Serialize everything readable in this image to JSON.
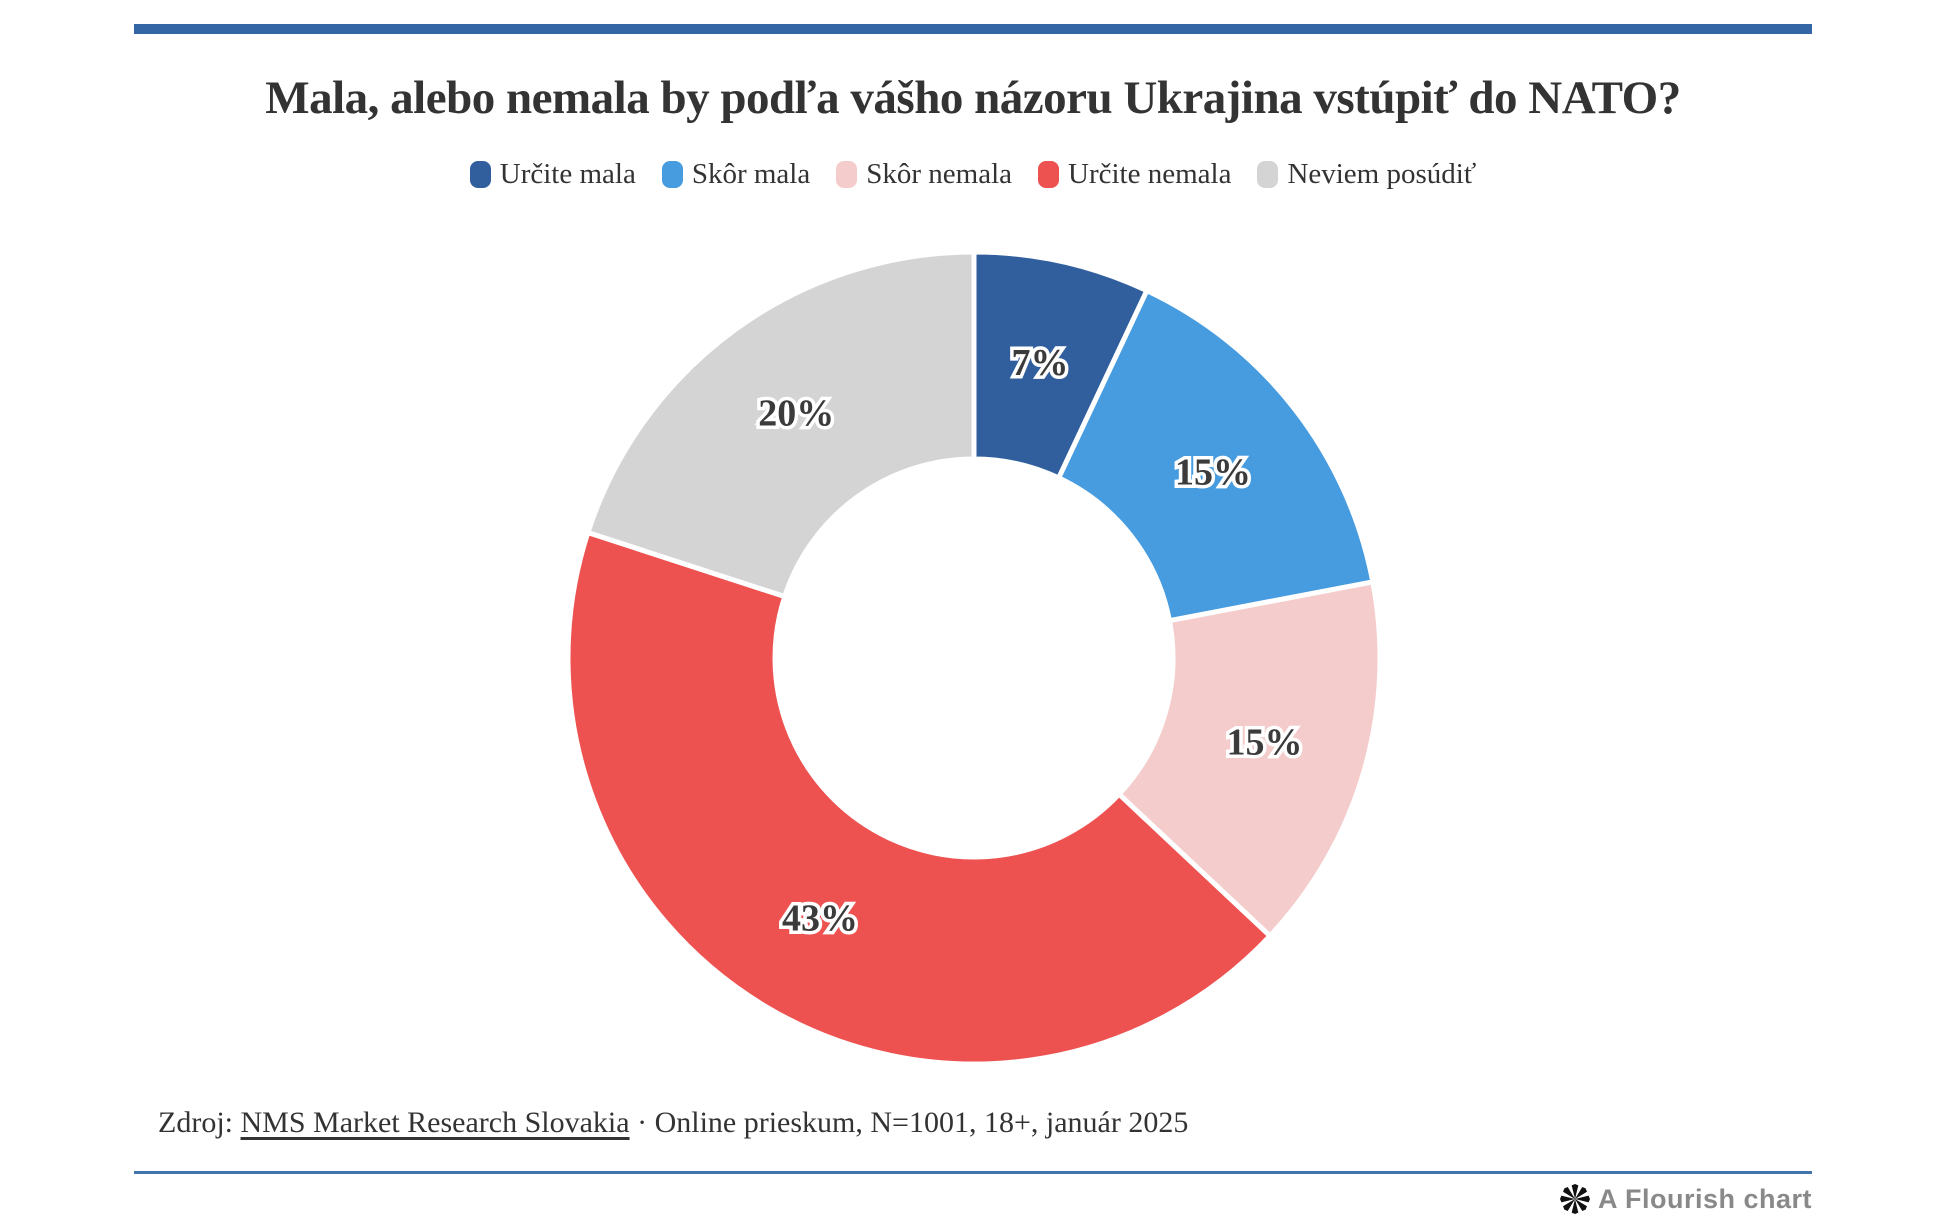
{
  "page": {
    "accent_rule_color": "#3465a4",
    "background": "#ffffff"
  },
  "chart_data": {
    "type": "pie",
    "subtype": "donut",
    "title": "Mala, alebo nemala by podľa vášho názoru Ukrajina vstúpiť do NATO?",
    "categories": [
      "Určite mala",
      "Skôr mala",
      "Skôr nemala",
      "Určite nemala",
      "Neviem posúdiť"
    ],
    "values": [
      7,
      15,
      15,
      43,
      20
    ],
    "unit": "%",
    "labels": [
      "7%",
      "15%",
      "15%",
      "43%",
      "20%"
    ],
    "colors": [
      "#315f9e",
      "#479bdf",
      "#f4cccb",
      "#ee5250",
      "#d4d4d4"
    ],
    "start_angle_deg": 0,
    "direction": "clockwise",
    "inner_radius_ratio": 0.49,
    "separator_color": "#ffffff",
    "label_color": "#3b3b3b",
    "label_outline_color": "#ffffff",
    "legend_position": "top-center"
  },
  "footer": {
    "source_prefix": "Zdroj: ",
    "source_link": "NMS Market Research Slovakia",
    "source_suffix": " · Online prieskum, N=1001, 18+, január 2025",
    "credit": "A Flourish chart"
  }
}
